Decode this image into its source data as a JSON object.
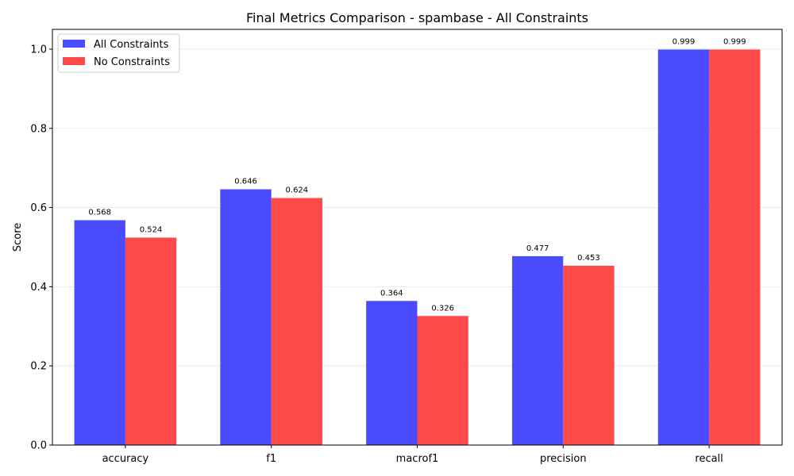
{
  "chart_data": {
    "type": "bar",
    "title": "Final Metrics Comparison - spambase - All Constraints",
    "xlabel": "",
    "ylabel": "Score",
    "categories": [
      "accuracy",
      "f1",
      "macrof1",
      "precision",
      "recall"
    ],
    "series": [
      {
        "name": "All Constraints",
        "color": "#4a4aff",
        "values": [
          0.568,
          0.646,
          0.364,
          0.477,
          0.999
        ],
        "labels": [
          "0.568",
          "0.646",
          "0.364",
          "0.477",
          "0.999"
        ]
      },
      {
        "name": "No Constraints",
        "color": "#ff4a4a",
        "values": [
          0.524,
          0.624,
          0.326,
          0.453,
          0.999
        ],
        "labels": [
          "0.524",
          "0.624",
          "0.326",
          "0.453",
          "0.999"
        ]
      }
    ],
    "ylim": [
      0,
      1.05
    ],
    "yticks": [
      0.0,
      0.2,
      0.4,
      0.6,
      0.8,
      1.0
    ],
    "ytick_labels": [
      "0.0",
      "0.2",
      "0.4",
      "0.6",
      "0.8",
      "1.0"
    ],
    "grid": true,
    "legend_position": "top-left"
  }
}
